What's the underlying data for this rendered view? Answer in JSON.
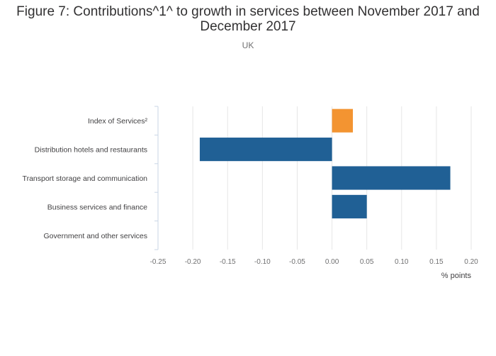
{
  "chart_data": {
    "type": "bar",
    "orientation": "horizontal",
    "title": "Figure 7: Contributions^1^ to growth in services between November 2017 and December 2017",
    "subtitle": "UK",
    "categories": [
      "Index of Services²",
      "Distribution hotels and restaurants",
      "Transport storage and communication",
      "Business services and finance",
      "Government and other services"
    ],
    "values": [
      0.03,
      -0.19,
      0.17,
      0.05,
      0.0
    ],
    "bar_colors": [
      "#f39431",
      "#206095",
      "#206095",
      "#206095",
      "#206095"
    ],
    "xlabel": "% points",
    "ylabel": "",
    "xlim": [
      -0.25,
      0.2
    ],
    "xticks": [
      "-0.25",
      "-0.20",
      "-0.15",
      "-0.10",
      "-0.05",
      "0.00",
      "0.05",
      "0.10",
      "0.15",
      "0.20"
    ],
    "xtick_values": [
      -0.25,
      -0.2,
      -0.15,
      -0.1,
      -0.05,
      0,
      0.05,
      0.1,
      0.15,
      0.2
    ],
    "grid": "vertical",
    "legend": "none"
  }
}
